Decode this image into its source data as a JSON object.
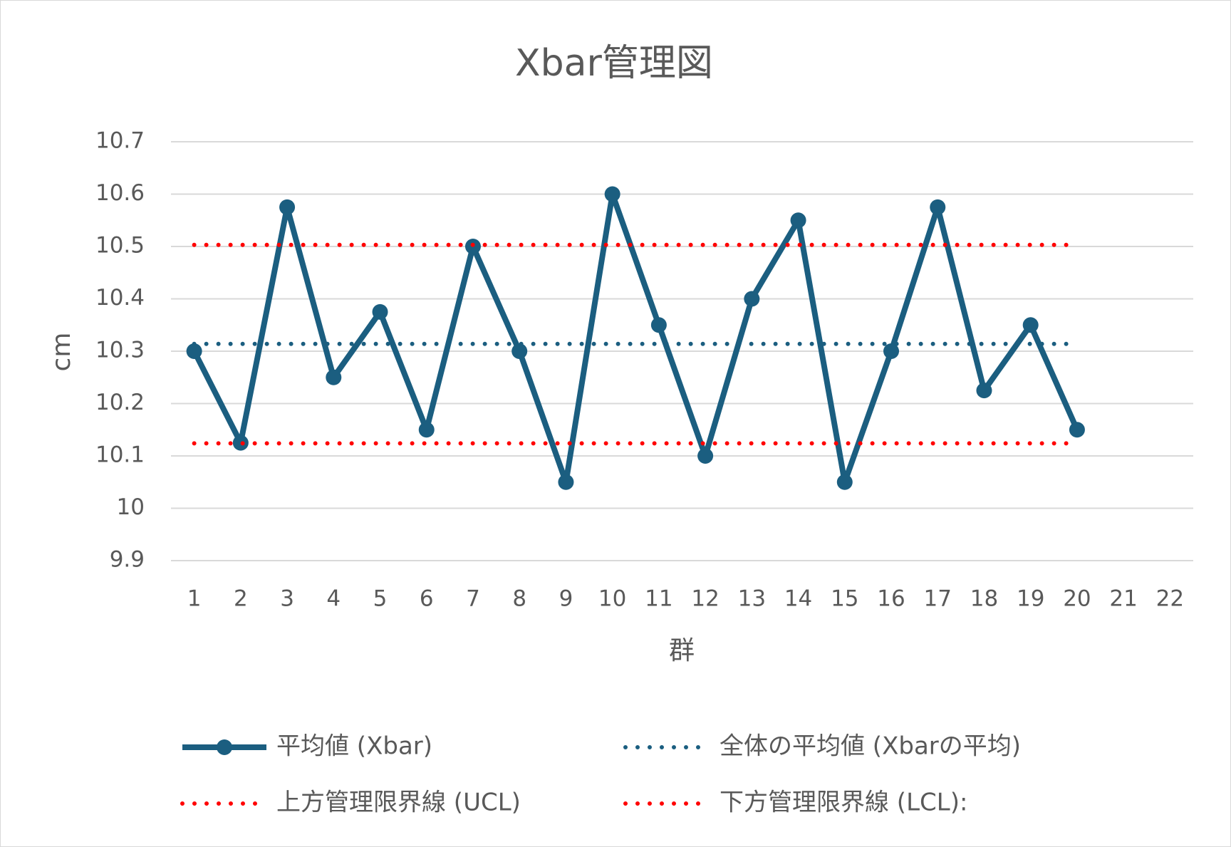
{
  "chart_data": {
    "type": "line",
    "title": "Xbar管理図",
    "x_label": "群",
    "y_label": "cm",
    "categories": [
      "1",
      "2",
      "3",
      "4",
      "5",
      "6",
      "7",
      "8",
      "9",
      "10",
      "11",
      "12",
      "13",
      "14",
      "15",
      "16",
      "17",
      "18",
      "19",
      "20",
      "21",
      "22"
    ],
    "series": [
      {
        "name": "平均値 (Xbar)",
        "color": "#1b5e80",
        "style": "solid",
        "marker": true,
        "values": [
          10.3,
          10.125,
          10.575,
          10.25,
          10.375,
          10.15,
          10.5,
          10.3,
          10.05,
          10.6,
          10.35,
          10.1,
          10.4,
          10.55,
          10.05,
          10.3,
          10.575,
          10.225,
          10.35,
          10.15,
          null,
          null
        ]
      },
      {
        "name": "全体の平均値 (Xbarの平均)",
        "color": "#1b5e80",
        "style": "dotted",
        "marker": false,
        "values": [
          10.314,
          10.314,
          10.314,
          10.314,
          10.314,
          10.314,
          10.314,
          10.314,
          10.314,
          10.314,
          10.314,
          10.314,
          10.314,
          10.314,
          10.314,
          10.314,
          10.314,
          10.314,
          10.314,
          10.314,
          null,
          null
        ]
      },
      {
        "name": "上方管理限界線 (UCL)",
        "color": "#ff0000",
        "style": "dotted",
        "marker": false,
        "values": [
          10.503,
          10.503,
          10.503,
          10.503,
          10.503,
          10.503,
          10.503,
          10.503,
          10.503,
          10.503,
          10.503,
          10.503,
          10.503,
          10.503,
          10.503,
          10.503,
          10.503,
          10.503,
          10.503,
          10.503,
          null,
          null
        ]
      },
      {
        "name": "下方管理限界線 (LCL):",
        "color": "#ff0000",
        "style": "dotted",
        "marker": false,
        "values": [
          10.124,
          10.124,
          10.124,
          10.124,
          10.124,
          10.124,
          10.124,
          10.124,
          10.124,
          10.124,
          10.124,
          10.124,
          10.124,
          10.124,
          10.124,
          10.124,
          10.124,
          10.124,
          10.124,
          10.124,
          null,
          null
        ]
      }
    ],
    "ylim": [
      9.9,
      10.7
    ],
    "yticks": [
      9.9,
      10,
      10.1,
      10.2,
      10.3,
      10.4,
      10.5,
      10.6,
      10.7
    ],
    "grid": true,
    "legend": "bottom"
  }
}
